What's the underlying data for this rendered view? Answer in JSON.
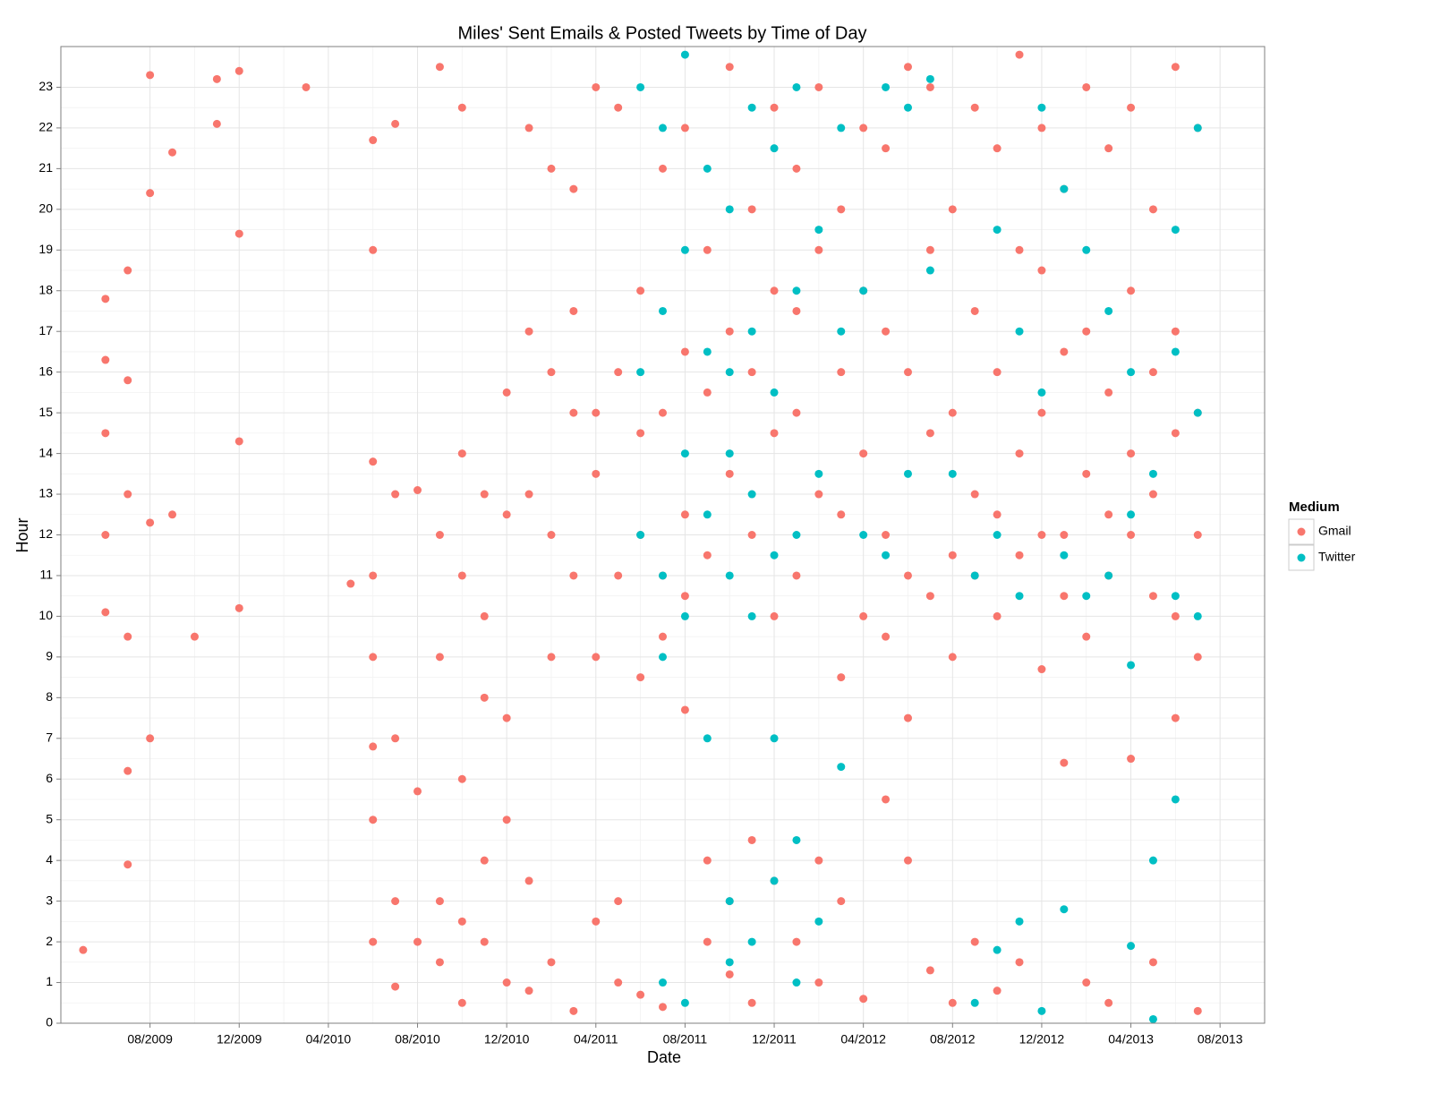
{
  "chart_data": {
    "type": "scatter",
    "title": "Miles' Sent Emails & Posted Tweets by Time of Day",
    "x_label": "Date",
    "y_label": "Hour",
    "legend_title": "Medium",
    "legend_position": "right",
    "grid": true,
    "xlim": [
      "04/2009",
      "10/2013"
    ],
    "xticks": [
      "08/2009",
      "12/2009",
      "04/2010",
      "08/2010",
      "12/2010",
      "04/2011",
      "08/2011",
      "12/2011",
      "04/2012",
      "08/2012",
      "12/2012",
      "04/2013",
      "08/2013"
    ],
    "ylim": [
      0,
      24
    ],
    "yticks": [
      0,
      1,
      2,
      3,
      4,
      5,
      6,
      7,
      8,
      9,
      10,
      11,
      12,
      13,
      14,
      15,
      16,
      17,
      18,
      19,
      20,
      21,
      22,
      23
    ],
    "series": [
      {
        "name": "Gmail",
        "color": "#F8766D",
        "x": [
          "05/2009",
          "06/2009",
          "06/2009",
          "06/2009",
          "06/2009",
          "06/2009",
          "07/2009",
          "07/2009",
          "07/2009",
          "07/2009",
          "07/2009",
          "07/2009",
          "08/2009",
          "08/2009",
          "08/2009",
          "08/2009",
          "09/2009",
          "09/2009",
          "10/2009",
          "11/2009",
          "11/2009",
          "12/2009",
          "12/2009",
          "12/2009",
          "12/2009",
          "03/2010",
          "05/2010",
          "06/2010",
          "06/2010",
          "06/2010",
          "06/2010",
          "06/2010",
          "06/2010",
          "06/2010",
          "06/2010",
          "07/2010",
          "07/2010",
          "07/2010",
          "07/2010",
          "07/2010",
          "08/2010",
          "08/2010",
          "08/2010",
          "09/2010",
          "09/2010",
          "09/2010",
          "09/2010",
          "09/2010",
          "10/2010",
          "10/2010",
          "10/2010",
          "10/2010",
          "10/2010",
          "10/2010",
          "11/2010",
          "11/2010",
          "11/2010",
          "11/2010",
          "11/2010",
          "12/2010",
          "12/2010",
          "12/2010",
          "12/2010",
          "12/2010",
          "01/2011",
          "01/2011",
          "01/2011",
          "01/2011",
          "01/2011",
          "02/2011",
          "02/2011",
          "02/2011",
          "02/2011",
          "02/2011",
          "03/2011",
          "03/2011",
          "03/2011",
          "03/2011",
          "03/2011",
          "04/2011",
          "04/2011",
          "04/2011",
          "04/2011",
          "04/2011",
          "05/2011",
          "05/2011",
          "05/2011",
          "05/2011",
          "05/2011",
          "06/2011",
          "06/2011",
          "06/2011",
          "06/2011",
          "06/2011",
          "07/2011",
          "07/2011",
          "07/2011",
          "07/2011",
          "07/2011",
          "08/2011",
          "08/2011",
          "08/2011",
          "08/2011",
          "08/2011",
          "09/2011",
          "09/2011",
          "09/2011",
          "09/2011",
          "09/2011",
          "10/2011",
          "10/2011",
          "10/2011",
          "10/2011",
          "10/2011",
          "11/2011",
          "11/2011",
          "11/2011",
          "11/2011",
          "11/2011",
          "12/2011",
          "12/2011",
          "12/2011",
          "12/2011",
          "12/2011",
          "01/2012",
          "01/2012",
          "01/2012",
          "01/2012",
          "01/2012",
          "02/2012",
          "02/2012",
          "02/2012",
          "02/2012",
          "02/2012",
          "03/2012",
          "03/2012",
          "03/2012",
          "03/2012",
          "03/2012",
          "04/2012",
          "04/2012",
          "04/2012",
          "04/2012",
          "04/2012",
          "05/2012",
          "05/2012",
          "05/2012",
          "05/2012",
          "05/2012",
          "06/2012",
          "06/2012",
          "06/2012",
          "06/2012",
          "06/2012",
          "07/2012",
          "07/2012",
          "07/2012",
          "07/2012",
          "07/2012",
          "08/2012",
          "08/2012",
          "08/2012",
          "08/2012",
          "08/2012",
          "09/2012",
          "09/2012",
          "09/2012",
          "09/2012",
          "09/2012",
          "10/2012",
          "10/2012",
          "10/2012",
          "10/2012",
          "10/2012",
          "11/2012",
          "11/2012",
          "11/2012",
          "11/2012",
          "11/2012",
          "12/2012",
          "12/2012",
          "12/2012",
          "12/2012",
          "12/2012",
          "01/2013",
          "01/2013",
          "01/2013",
          "01/2013",
          "01/2013",
          "02/2013",
          "02/2013",
          "02/2013",
          "02/2013",
          "02/2013",
          "03/2013",
          "03/2013",
          "03/2013",
          "03/2013",
          "03/2013",
          "04/2013",
          "04/2013",
          "04/2013",
          "04/2013",
          "04/2013",
          "05/2013",
          "05/2013",
          "05/2013",
          "05/2013",
          "05/2013",
          "06/2013",
          "06/2013",
          "06/2013",
          "06/2013",
          "06/2013",
          "07/2013",
          "07/2013",
          "07/2013",
          "07/2013",
          "07/2013"
        ],
        "values": [
          1.8,
          17.8,
          16.3,
          14.5,
          12,
          10.1,
          18.5,
          15.8,
          13,
          9.5,
          6.2,
          3.9,
          23.3,
          20.4,
          12.3,
          7,
          21.4,
          12.5,
          9.5,
          22.1,
          23.2,
          23.4,
          19.4,
          14.3,
          10.2,
          23,
          10.8,
          21.7,
          19,
          13.8,
          11,
          9,
          6.8,
          5,
          2,
          22.1,
          13,
          7,
          3,
          0.9,
          13.1,
          5.7,
          2,
          23.5,
          12,
          9,
          3,
          1.5,
          22.5,
          14,
          11,
          6,
          2.5,
          0.5,
          13,
          10,
          8,
          4,
          2,
          15.5,
          12.5,
          7.5,
          5,
          1,
          22,
          17,
          13,
          3.5,
          0.8,
          21,
          16,
          12,
          9,
          1.5,
          20.5,
          17.5,
          15,
          11,
          0.3,
          23,
          15,
          13.5,
          9,
          2.5,
          22.5,
          16,
          11,
          3,
          1,
          18,
          14.5,
          12,
          8.5,
          0.7,
          21,
          15,
          11,
          9.5,
          0.4,
          22,
          16.5,
          12.5,
          10.5,
          7.7,
          19,
          15.5,
          11.5,
          4,
          2,
          23.5,
          17,
          13.5,
          3,
          1.2,
          20,
          16,
          12,
          4.5,
          0.5,
          22.5,
          18,
          14.5,
          10,
          3.5,
          21,
          17.5,
          15,
          11,
          2,
          23,
          19,
          13,
          4,
          1,
          20,
          16,
          12.5,
          8.5,
          3,
          22,
          18,
          14,
          10,
          0.6,
          21.5,
          17,
          12,
          9.5,
          5.5,
          23.5,
          16,
          11,
          7.5,
          4,
          23,
          19,
          14.5,
          10.5,
          1.3,
          20,
          15,
          11.5,
          9,
          0.5,
          22.5,
          17.5,
          13,
          11,
          2,
          21.5,
          16,
          12.5,
          10,
          0.8,
          23.8,
          19,
          14,
          11.5,
          1.5,
          22,
          18.5,
          15,
          12,
          8.7,
          20.5,
          16.5,
          12,
          10.5,
          6.4,
          23,
          17,
          13.5,
          9.5,
          1,
          21.5,
          15.5,
          12.5,
          11,
          0.5,
          22.5,
          18,
          14,
          12,
          6.5,
          20,
          16,
          13,
          10.5,
          1.5,
          23.5,
          17,
          14.5,
          10,
          7.5,
          22,
          15,
          12,
          9,
          0.3
        ]
      },
      {
        "name": "Twitter",
        "color": "#00BFC4",
        "x": [
          "06/2011",
          "06/2011",
          "06/2011",
          "07/2011",
          "07/2011",
          "07/2011",
          "07/2011",
          "07/2011",
          "08/2011",
          "08/2011",
          "08/2011",
          "08/2011",
          "08/2011",
          "09/2011",
          "09/2011",
          "09/2011",
          "09/2011",
          "10/2011",
          "10/2011",
          "10/2011",
          "10/2011",
          "10/2011",
          "10/2011",
          "11/2011",
          "11/2011",
          "11/2011",
          "11/2011",
          "11/2011",
          "12/2011",
          "12/2011",
          "12/2011",
          "12/2011",
          "12/2011",
          "01/2012",
          "01/2012",
          "01/2012",
          "01/2012",
          "01/2012",
          "02/2012",
          "02/2012",
          "02/2012",
          "03/2012",
          "03/2012",
          "03/2012",
          "04/2012",
          "04/2012",
          "05/2012",
          "05/2012",
          "06/2012",
          "06/2012",
          "07/2012",
          "07/2012",
          "08/2012",
          "09/2012",
          "09/2012",
          "10/2012",
          "10/2012",
          "10/2012",
          "11/2012",
          "11/2012",
          "11/2012",
          "12/2012",
          "12/2012",
          "12/2012",
          "01/2013",
          "01/2013",
          "01/2013",
          "02/2013",
          "02/2013",
          "03/2013",
          "03/2013",
          "04/2013",
          "04/2013",
          "04/2013",
          "04/2013",
          "05/2013",
          "05/2013",
          "05/2013",
          "06/2013",
          "06/2013",
          "06/2013",
          "06/2013",
          "07/2013",
          "07/2013",
          "07/2013"
        ],
        "values": [
          23,
          16,
          12,
          22,
          17.5,
          11,
          9,
          1,
          23.8,
          19,
          14,
          10,
          0.5,
          21,
          16.5,
          12.5,
          7,
          20,
          16,
          14,
          11,
          3,
          1.5,
          22.5,
          17,
          13,
          10,
          2,
          21.5,
          15.5,
          11.5,
          7,
          3.5,
          23,
          18,
          12,
          4.5,
          1,
          19.5,
          13.5,
          2.5,
          22,
          17,
          6.3,
          18,
          12,
          23,
          11.5,
          22.5,
          13.5,
          23.2,
          18.5,
          13.5,
          11,
          0.5,
          19.5,
          12,
          1.8,
          17,
          10.5,
          2.5,
          22.5,
          15.5,
          0.3,
          20.5,
          11.5,
          2.8,
          19,
          10.5,
          17.5,
          11,
          16,
          12.5,
          1.9,
          8.8,
          13.5,
          4,
          0.1,
          19.5,
          16.5,
          10.5,
          5.5,
          22,
          15,
          10
        ]
      }
    ]
  }
}
